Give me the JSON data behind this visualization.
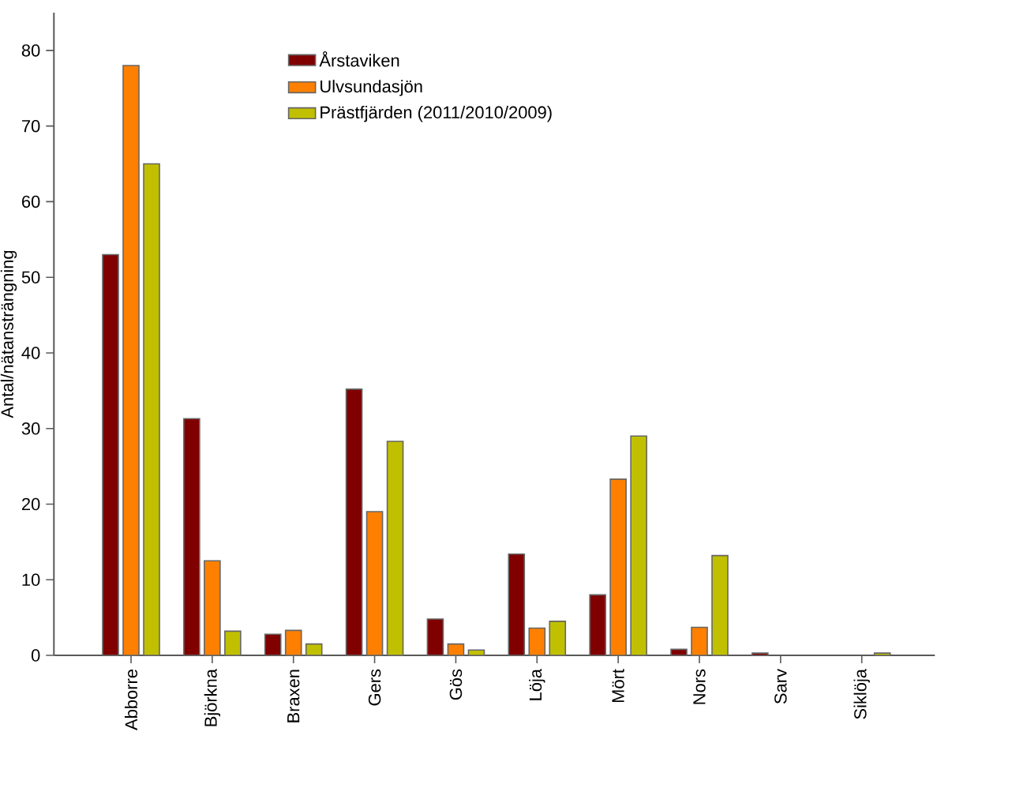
{
  "chart_data": {
    "type": "bar",
    "ylabel": "Antal/nätansträngning",
    "categories": [
      "Abborre",
      "Björkna",
      "Braxen",
      "Gers",
      "Gös",
      "Löja",
      "Mört",
      "Nors",
      "Sarv",
      "Siklöja"
    ],
    "series": [
      {
        "name": "Årstaviken",
        "color": "#800000",
        "values": [
          53,
          31.3,
          2.8,
          35.2,
          4.8,
          13.4,
          8,
          0.8,
          0.3,
          null
        ]
      },
      {
        "name": "Ulvsundasjön",
        "color": "#ff8000",
        "values": [
          78,
          12.5,
          3.3,
          19,
          1.5,
          3.6,
          23.3,
          3.7,
          null,
          null
        ]
      },
      {
        "name": "Prästfjärden (2011/2010/2009)",
        "color": "#c0c000",
        "values": [
          65,
          3.2,
          1.5,
          28.3,
          0.7,
          4.5,
          29,
          13.2,
          null,
          0.3
        ]
      }
    ],
    "ylim": [
      0,
      85
    ],
    "yticks": [
      0,
      10,
      20,
      30,
      40,
      50,
      60,
      70,
      80
    ],
    "legend": "top",
    "grid": false
  }
}
